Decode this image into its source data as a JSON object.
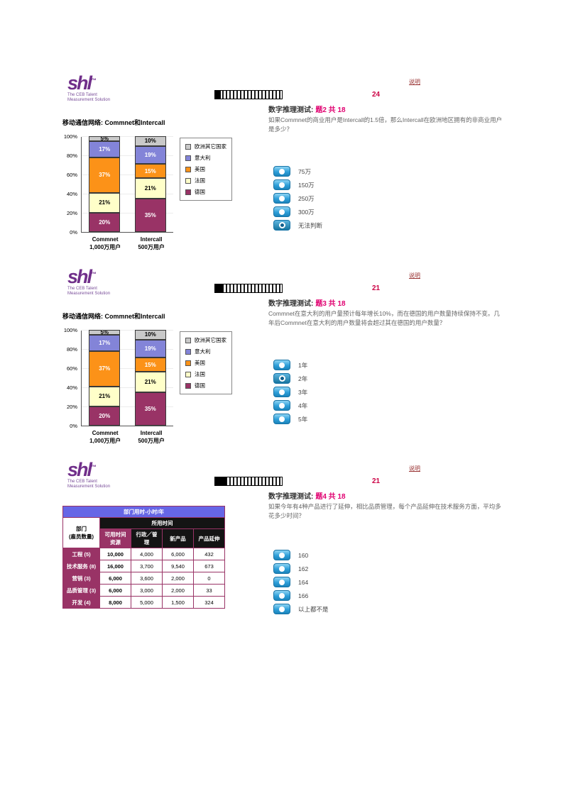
{
  "brand": {
    "logo": "shl",
    "tm": "™",
    "tagline": "The CEB Talent\nMeasurement Solution"
  },
  "sections": [
    {
      "help_link": "说明",
      "timer": "24",
      "progress_percent": 9,
      "title_prefix": "数字推理测试:",
      "title_highlight": "题2 共 18",
      "question": "如果Commnet的商业用户是Intercall的1.5倍，那么Intercall在欧洲地区拥有的非商业用户是多少？",
      "chart_data": {
        "type": "bar",
        "stacked": true,
        "title": "移动通信网络:  Commnet和Intercall",
        "categories": [
          [
            "Commnet",
            "1,000万用户"
          ],
          [
            "Intercall",
            "500万用户"
          ]
        ],
        "series": [
          {
            "name": "欧洲其它国家",
            "color": "#C9C9C9",
            "label_color": "#000000",
            "values": [
              5,
              10
            ]
          },
          {
            "name": "意大利",
            "color": "#8384D8",
            "label_color": "#ffffff",
            "values": [
              17,
              19
            ]
          },
          {
            "name": "美国",
            "color": "#FC9218",
            "label_color": "#ffffff",
            "values": [
              37,
              15
            ]
          },
          {
            "name": "法国",
            "color": "#FFFFC9",
            "label_color": "#000000",
            "values": [
              21,
              21
            ]
          },
          {
            "name": "德国",
            "color": "#993366",
            "label_color": "#ffffff",
            "values": [
              20,
              35
            ]
          }
        ],
        "ylim": [
          0,
          100
        ],
        "ytick_step": 20,
        "ytick_suffix": "%",
        "legend_position": "right"
      },
      "options": [
        {
          "label": "75万",
          "selected": false
        },
        {
          "label": "150万",
          "selected": false
        },
        {
          "label": "250万",
          "selected": false
        },
        {
          "label": "300万",
          "selected": false
        },
        {
          "label": "无法判断",
          "selected": true
        }
      ]
    },
    {
      "help_link": "说明",
      "timer": "21",
      "progress_percent": 13,
      "title_prefix": "数字推理测试:",
      "title_highlight": "题3 共 18",
      "question": "Commnet在意大利的用户量预计每年增长10%，而在德国的用户数量持续保持不变。几年后Commnet在意大利的用户数量将会超过其在德国的用户数量？",
      "chart_data": {
        "type": "bar",
        "stacked": true,
        "title": "移动通信网络:  Commnet和Intercall",
        "categories": [
          [
            "Commnet",
            "1,000万用户"
          ],
          [
            "Intercall",
            "500万用户"
          ]
        ],
        "series": [
          {
            "name": "欧洲其它国家",
            "color": "#C9C9C9",
            "label_color": "#000000",
            "values": [
              5,
              10
            ]
          },
          {
            "name": "意大利",
            "color": "#8384D8",
            "label_color": "#ffffff",
            "values": [
              17,
              19
            ]
          },
          {
            "name": "美国",
            "color": "#FC9218",
            "label_color": "#ffffff",
            "values": [
              37,
              15
            ]
          },
          {
            "name": "法国",
            "color": "#FFFFC9",
            "label_color": "#000000",
            "values": [
              21,
              21
            ]
          },
          {
            "name": "德国",
            "color": "#993366",
            "label_color": "#ffffff",
            "values": [
              20,
              35
            ]
          }
        ],
        "ylim": [
          0,
          100
        ],
        "ytick_step": 20,
        "ytick_suffix": "%",
        "legend_position": "right"
      },
      "options": [
        {
          "label": "1年",
          "selected": false
        },
        {
          "label": "2年",
          "selected": true
        },
        {
          "label": "3年",
          "selected": false
        },
        {
          "label": "4年",
          "selected": false
        },
        {
          "label": "5年",
          "selected": false
        }
      ]
    },
    {
      "help_link": "说明",
      "timer": "21",
      "progress_percent": 17,
      "title_prefix": "数字推理测试:",
      "title_highlight": "题4 共 18",
      "question": "如果今年有4种产品进行了延伸，相比品质管理，每个产品延伸在技术服务方面，平均多花多少时间？",
      "table": {
        "title": "部门用时-小时/年",
        "span_header": "所用时间",
        "col1_header": "部门\n(雇员数量)",
        "columns": [
          "可用时间\n资源",
          "行政／管理",
          "新产品",
          "产品延伸"
        ],
        "rows": [
          {
            "dept": "工程 (5)",
            "values": [
              "10,000",
              "4,000",
              "6,000",
              "432"
            ]
          },
          {
            "dept": "技术服务 (8)",
            "values": [
              "16,000",
              "3,700",
              "9,540",
              "673"
            ]
          },
          {
            "dept": "营销 (3)",
            "values": [
              "6,000",
              "3,600",
              "2,000",
              "0"
            ]
          },
          {
            "dept": "品质管理 (3)",
            "values": [
              "6,000",
              "3,000",
              "2,000",
              "33"
            ]
          },
          {
            "dept": "开发 (4)",
            "values": [
              "8,000",
              "5,000",
              "1,500",
              "324"
            ]
          }
        ]
      },
      "options": [
        {
          "label": "160",
          "selected": false
        },
        {
          "label": "162",
          "selected": false
        },
        {
          "label": "164",
          "selected": false
        },
        {
          "label": "166",
          "selected": false
        },
        {
          "label": "以上都不是",
          "selected": false
        }
      ]
    }
  ]
}
